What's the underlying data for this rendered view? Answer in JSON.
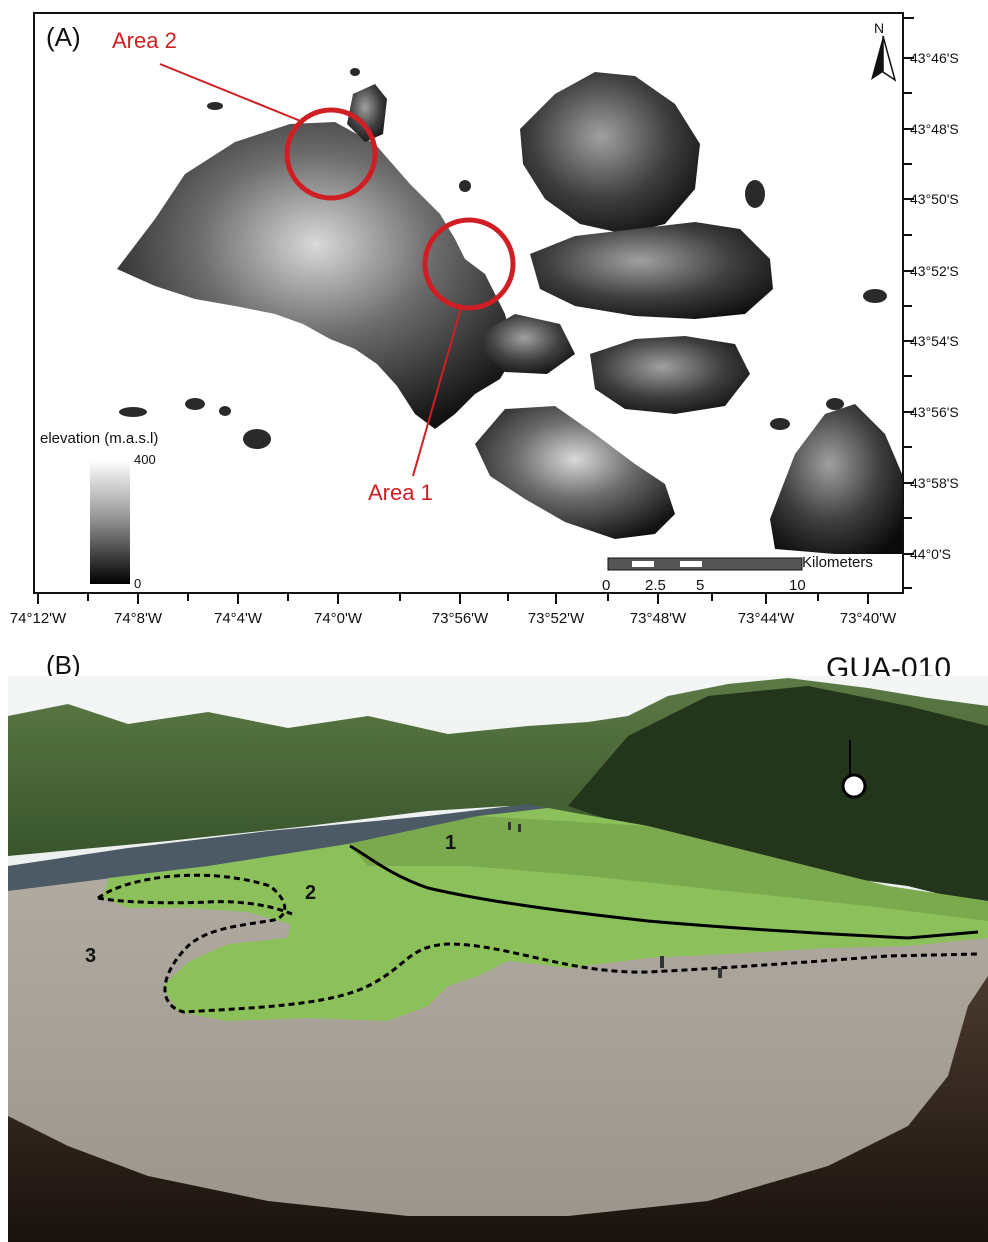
{
  "panel_a": {
    "label": "(A)",
    "areas": [
      {
        "label": "Area 2"
      },
      {
        "label": "Area 1"
      }
    ],
    "legend": {
      "title": "elevation (m.a.s.l)",
      "max": "400",
      "min": "0"
    },
    "scalebar": {
      "unit": "Kilometers",
      "ticks": [
        "0",
        "2.5",
        "5",
        "10"
      ]
    },
    "north_arrow": "N",
    "latitudes": [
      "43°46'S",
      "43°48'S",
      "43°50'S",
      "43°52'S",
      "43°54'S",
      "43°56'S",
      "43°58'S",
      "44°0'S"
    ],
    "longitudes": [
      "74°12'W",
      "74°8'W",
      "74°4'W",
      "74°0'W",
      "73°56'W",
      "73°52'W",
      "73°48'W",
      "73°44'W",
      "73°40'W"
    ],
    "colors": {
      "circle": "#d01f24",
      "label": "#d01f24"
    }
  },
  "panel_b": {
    "label": "(B)",
    "site": "GUA-010",
    "zones": [
      "1",
      "2",
      "3"
    ]
  }
}
